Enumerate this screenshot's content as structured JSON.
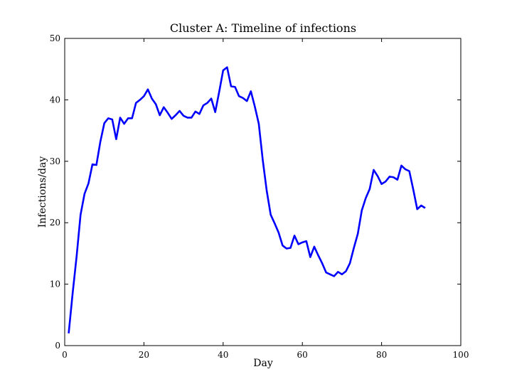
{
  "chart_data": {
    "type": "line",
    "title": "Cluster A: Timeline of infections",
    "xlabel": "Day",
    "ylabel": "Infections/day",
    "xlim": [
      0,
      100
    ],
    "ylim": [
      0,
      50
    ],
    "xticks": [
      0,
      20,
      40,
      60,
      80,
      100
    ],
    "yticks": [
      0,
      10,
      20,
      30,
      40,
      50
    ],
    "grid": false,
    "series": [
      {
        "color": "#0000ff",
        "x": [
          1,
          2,
          3,
          4,
          5,
          6,
          7,
          8,
          9,
          10,
          11,
          12,
          13,
          14,
          15,
          16,
          17,
          18,
          19,
          20,
          21,
          22,
          23,
          24,
          25,
          26,
          27,
          28,
          29,
          30,
          31,
          32,
          33,
          34,
          35,
          36,
          37,
          38,
          39,
          40,
          41,
          42,
          43,
          44,
          45,
          46,
          47,
          48,
          49,
          50,
          51,
          52,
          53,
          54,
          55,
          56,
          57,
          58,
          59,
          60,
          61,
          62,
          63,
          64,
          65,
          66,
          67,
          68,
          69,
          70,
          71,
          72,
          73,
          74,
          75,
          76,
          77,
          78,
          79,
          80,
          81,
          82,
          83,
          84,
          85,
          86,
          87,
          88,
          89,
          90,
          91
        ],
        "y": [
          2,
          8.5,
          14.5,
          21.3,
          24.7,
          26.4,
          29.5,
          29.4,
          33.2,
          36.2,
          37.0,
          36.8,
          33.6,
          37.1,
          36.1,
          37.0,
          37.0,
          39.5,
          40.0,
          40.6,
          41.7,
          40.2,
          39.3,
          37.5,
          38.8,
          37.9,
          36.9,
          37.5,
          38.2,
          37.4,
          37.1,
          37.1,
          38.1,
          37.7,
          39.1,
          39.5,
          40.2,
          38.0,
          41.3,
          44.8,
          45.3,
          42.2,
          42.1,
          40.6,
          40.3,
          39.8,
          41.4,
          38.9,
          36.1,
          30.2,
          25.2,
          21.3,
          19.9,
          18.4,
          16.3,
          15.8,
          15.9,
          17.9,
          16.5,
          16.8,
          17.0,
          14.4,
          16.1,
          14.7,
          13.4,
          11.9,
          11.6,
          11.3,
          12.0,
          11.6,
          12.1,
          13.4,
          15.9,
          18.2,
          22.0,
          24.0,
          25.5,
          28.6,
          27.6,
          26.3,
          26.7,
          27.5,
          27.4,
          27.0,
          29.3,
          28.7,
          28.4,
          25.4,
          22.2,
          22.8,
          22.4
        ]
      }
    ]
  }
}
